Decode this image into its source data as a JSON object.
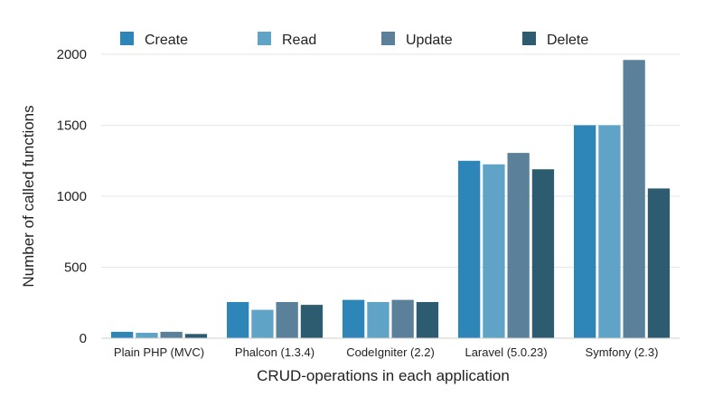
{
  "chart_data": {
    "type": "bar",
    "title": "",
    "xlabel": "CRUD-operations in each application",
    "ylabel": "Number of called functions",
    "ylim": [
      0,
      2000
    ],
    "yticks": [
      0,
      500,
      1000,
      1500,
      2000
    ],
    "grid": true,
    "legend_position": "top",
    "categories": [
      "Plain PHP (MVC)",
      "Phalcon (1.3.4)",
      "CodeIgniter (2.2)",
      "Laravel (5.0.23)",
      "Symfony (2.3)"
    ],
    "series": [
      {
        "name": "Create",
        "color": "#2e86b8",
        "values": [
          45,
          255,
          270,
          1250,
          1500
        ]
      },
      {
        "name": "Read",
        "color": "#5fa3c6",
        "values": [
          38,
          200,
          255,
          1225,
          1500
        ]
      },
      {
        "name": "Update",
        "color": "#5a8199",
        "values": [
          45,
          255,
          270,
          1305,
          1960
        ]
      },
      {
        "name": "Delete",
        "color": "#2d5c70",
        "values": [
          30,
          235,
          255,
          1190,
          1055
        ]
      }
    ]
  }
}
